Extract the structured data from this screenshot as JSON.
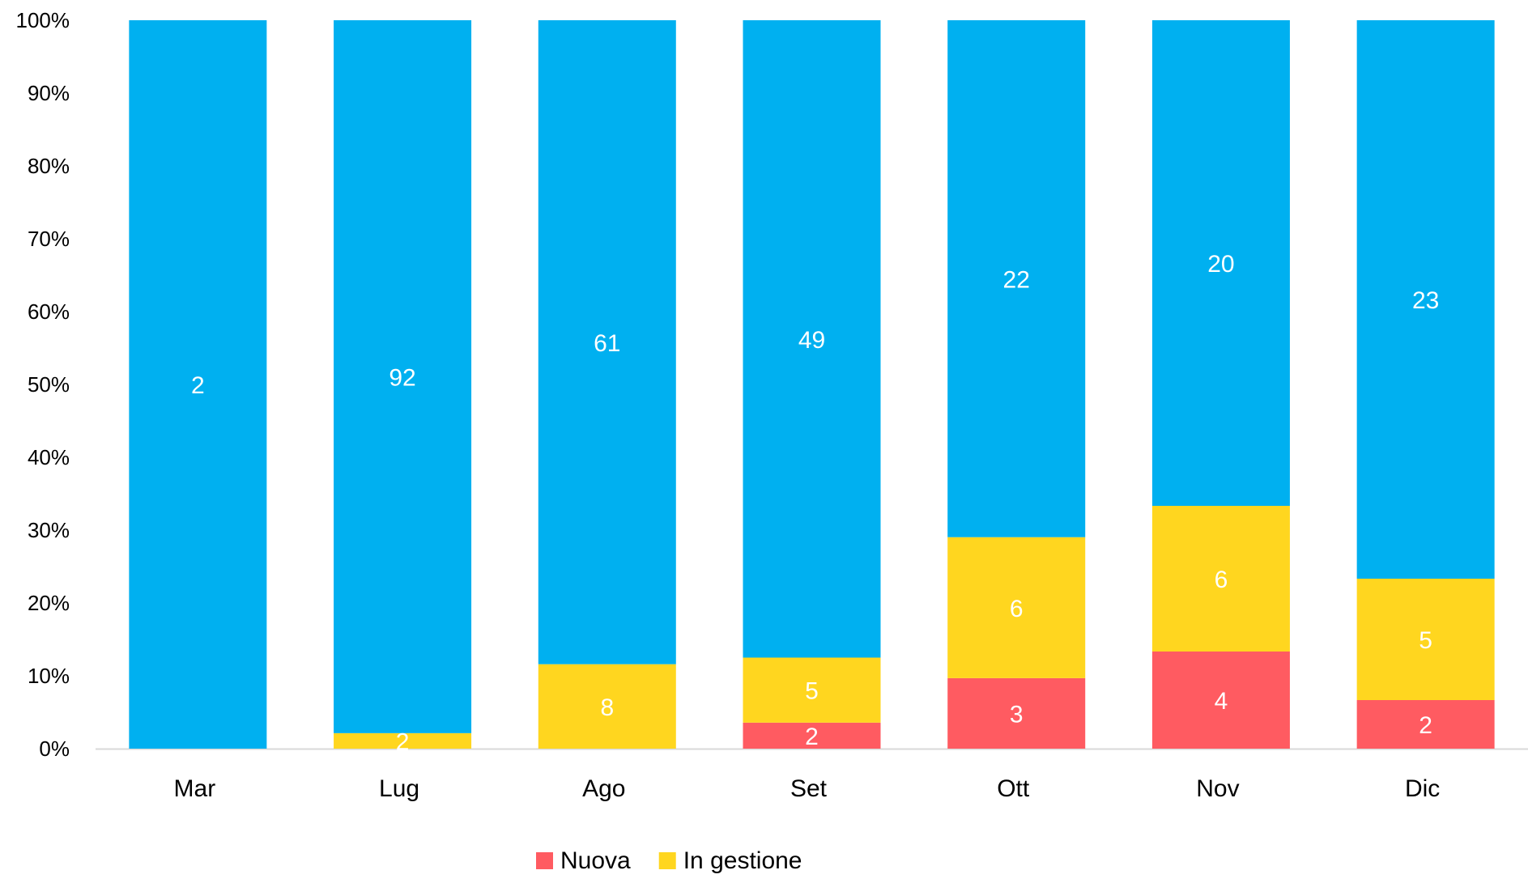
{
  "chart_data": {
    "type": "bar",
    "stacked": "percent",
    "categories": [
      "Mar",
      "Lug",
      "Ago",
      "Set",
      "Ott",
      "Nov",
      "Dic"
    ],
    "series": [
      {
        "name": "Nuova",
        "color": "#FF5B61",
        "values": [
          0,
          0,
          0,
          2,
          3,
          4,
          2
        ]
      },
      {
        "name": "In gestione",
        "color": "#FFD61F",
        "values": [
          0,
          2,
          8,
          5,
          6,
          6,
          5
        ]
      },
      {
        "color": "#00B0F0",
        "values": [
          2,
          92,
          61,
          49,
          22,
          20,
          23
        ]
      }
    ],
    "ylim": [
      0,
      100
    ],
    "yticks": [
      "0%",
      "10%",
      "20%",
      "30%",
      "40%",
      "50%",
      "60%",
      "70%",
      "80%",
      "90%",
      "100%"
    ],
    "data_labels": true,
    "grid": false,
    "legend": {
      "position": "bottom",
      "entries": [
        "Nuova",
        "In gestione"
      ]
    }
  }
}
